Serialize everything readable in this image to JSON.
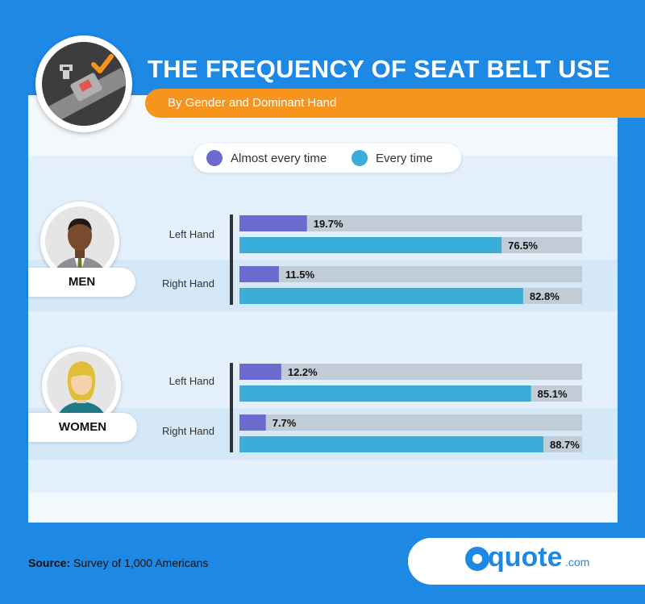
{
  "header": {
    "title": "THE FREQUENCY OF SEAT BELT USE",
    "subtitle": "By Gender and Dominant Hand",
    "logo_icon": "seat-belt-check-icon"
  },
  "legend": [
    {
      "label": "Almost every time",
      "color": "#6c6bd0"
    },
    {
      "label": "Every time",
      "color": "#3aaed8"
    }
  ],
  "chart_data": {
    "type": "bar",
    "orientation": "horizontal",
    "xlim": [
      0,
      100
    ],
    "unit": "%",
    "groups": [
      {
        "name": "MEN",
        "rows": [
          {
            "label": "Left Hand",
            "values": [
              19.7,
              76.5
            ],
            "labels": [
              "19.7%",
              "76.5%"
            ]
          },
          {
            "label": "Right Hand",
            "values": [
              11.5,
              82.8
            ],
            "labels": [
              "11.5%",
              "82.8%"
            ]
          }
        ]
      },
      {
        "name": "WOMEN",
        "rows": [
          {
            "label": "Left Hand",
            "values": [
              12.2,
              85.1
            ],
            "labels": [
              "12.2%",
              "85.1%"
            ]
          },
          {
            "label": "Right Hand",
            "values": [
              7.7,
              88.7
            ],
            "labels": [
              "7.7%",
              "88.7%"
            ]
          }
        ]
      }
    ]
  },
  "footer": {
    "source_label": "Source:",
    "source_text": " Survey of 1,000 Americans",
    "brand_name": "quote",
    "brand_tld": ".com"
  },
  "colors": {
    "background": "#1e88e5",
    "accent": "#f7941d",
    "track": "#c2ccd6"
  }
}
